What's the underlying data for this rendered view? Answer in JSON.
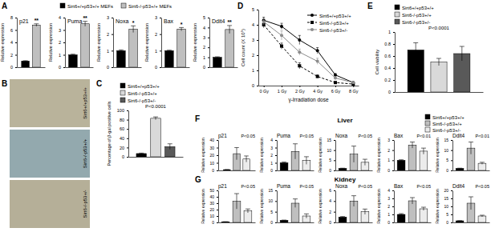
{
  "chart_data": [
    {
      "type": "bar",
      "title": "p21",
      "y_label": "Relative expression",
      "categories": [
        null
      ],
      "series": [
        {
          "name": "Sirt6+/+p53+/+ MEFs",
          "color": "#000000",
          "values": [
            1
          ],
          "errors": [
            0.05
          ]
        },
        {
          "name": "Sirt6-/-p53+/+ MEFs",
          "color": "#bfbfbf",
          "values": [
            6.8
          ],
          "errors": [
            0.2
          ]
        }
      ],
      "legend": "top",
      "annotations": [
        "**"
      ],
      "ylim": [
        0,
        8
      ],
      "yticks": [
        0,
        2,
        4,
        6,
        8
      ]
    },
    {
      "type": "bar",
      "title": "Puma",
      "y_label": "Relative expression",
      "categories": [
        null,
        null
      ],
      "values": [
        1,
        3.5
      ],
      "errors": [
        0.05,
        0.2
      ],
      "colors": [
        "#000000",
        "#bfbfbf"
      ],
      "annotations": [
        "**"
      ],
      "ylim": [
        0,
        4
      ],
      "yticks": [
        0,
        1,
        2,
        3,
        4
      ]
    },
    {
      "type": "bar",
      "title": "Noxa",
      "y_label": "Relative expression",
      "categories": [
        null,
        null
      ],
      "values": [
        1,
        2.3
      ],
      "errors": [
        0.05,
        0.2
      ],
      "colors": [
        "#000000",
        "#bfbfbf"
      ],
      "annotations": [
        "*"
      ],
      "ylim": [
        0,
        3
      ],
      "yticks": [
        0,
        1,
        2,
        3
      ]
    },
    {
      "type": "bar",
      "title": "Bax",
      "y_label": "Relative expression",
      "categories": [
        null,
        null
      ],
      "values": [
        1,
        2.3
      ],
      "errors": [
        0.03,
        0.1
      ],
      "colors": [
        "#000000",
        "#bfbfbf"
      ],
      "annotations": [
        "*"
      ],
      "ylim": [
        0,
        3
      ],
      "yticks": [
        0,
        1,
        2,
        3
      ]
    },
    {
      "type": "bar",
      "title": "Ddit4",
      "y_label": "Relative expression",
      "categories": [
        null,
        null
      ],
      "values": [
        1,
        3.8
      ],
      "errors": [
        0.05,
        0.4
      ],
      "colors": [
        "#000000",
        "#bfbfbf"
      ],
      "annotations": [
        "**"
      ],
      "ylim": [
        0,
        5
      ],
      "yticks": [
        0,
        1,
        2,
        3,
        4,
        5
      ]
    },
    {
      "type": "bar",
      "y_label": "Percentage of β-gal positive cells",
      "categories": [
        null
      ],
      "series": [
        {
          "name": "Sirt6+/+p53+/+",
          "color": "#000000",
          "values": [
            7
          ],
          "errors": [
            1
          ]
        },
        {
          "name": "Sirt6-/-p53+/+",
          "color": "#d9d9d9",
          "values": [
            83
          ],
          "errors": [
            3
          ]
        },
        {
          "name": "Sirt6-/-p53+/-",
          "color": "#595959",
          "values": [
            22
          ],
          "errors": [
            6
          ]
        }
      ],
      "legend": "top",
      "annotations": [
        "P<0.0001"
      ],
      "ylim": [
        0,
        100
      ],
      "yticks": [
        0,
        20,
        40,
        60,
        80,
        100
      ]
    },
    {
      "type": "line",
      "y_label": "Cell count (X 10⁵)",
      "x_label": "γ-Irradiation dose",
      "categories": [
        "0 Gy",
        "1 Gy",
        "2 Gy",
        "4 Gy",
        "6 Gy",
        "8 Gy"
      ],
      "series": [
        {
          "name": "Sirt6+/+p53+/+",
          "color": "#000000",
          "marker": "circle",
          "line_style": "solid",
          "values": [
            4.3,
            3.9,
            3.0,
            2.3,
            0.7,
            0.2
          ],
          "errors": [
            0.2,
            0.2,
            0.3,
            0.2,
            0.1,
            0.05
          ]
        },
        {
          "name": "Sirt6-/-p53+/+",
          "color": "#000000",
          "marker": "square",
          "line_style": "dashed",
          "values": [
            4.0,
            2.6,
            1.3,
            0.6,
            0.2,
            0.1
          ],
          "errors": [
            0.2,
            0.2,
            0.2,
            0.1,
            0.05,
            0.05
          ]
        },
        {
          "name": "Sirt6-/-p53+/-",
          "color": "#8c8c8c",
          "marker": "circle",
          "line_style": "solid",
          "values": [
            4.2,
            3.3,
            2.2,
            1.6,
            0.5,
            0.2
          ],
          "errors": [
            0.2,
            0.3,
            0.2,
            0.2,
            0.1,
            0.05
          ]
        }
      ],
      "legend": "top right",
      "ylim": [
        0,
        5
      ],
      "yticks": [
        0,
        1,
        2,
        3,
        4,
        5
      ]
    },
    {
      "type": "bar",
      "y_label": "Cell viability",
      "categories": [
        null
      ],
      "series": [
        {
          "name": "Sirt6+/+p53+/+",
          "color": "#000000",
          "values": [
            0.7
          ],
          "errors": [
            0.12
          ]
        },
        {
          "name": "Sirt6-/-p53+/+",
          "color": "#d9d9d9",
          "values": [
            0.5
          ],
          "errors": [
            0.06
          ]
        },
        {
          "name": "Sirt6-/-p53+/-",
          "color": "#595959",
          "values": [
            0.64
          ],
          "errors": [
            0.12
          ]
        }
      ],
      "legend": "top",
      "annotations": [
        "P<0.0001"
      ],
      "ylim": [
        0,
        1
      ],
      "yticks": [
        0,
        0.2,
        0.4,
        0.6,
        0.8,
        1
      ]
    },
    {
      "type": "bar",
      "title": "p21",
      "subtitle": "Liver",
      "y_label": "Relative expression",
      "categories": [
        null
      ],
      "series": [
        {
          "name": "Sirt6+/+p53+/+",
          "color": "#000000",
          "values": [
            1
          ],
          "errors": [
            0.1
          ]
        },
        {
          "name": "Sirt6-/-p53+/+",
          "color": "#bfbfbf",
          "values": [
            22
          ],
          "errors": [
            8
          ]
        },
        {
          "name": "Sirt6-/-p53+/-",
          "color": "#ececec",
          "values": [
            15
          ],
          "errors": [
            4
          ]
        }
      ],
      "legend": "top right",
      "annotations": [
        "P<0.05"
      ],
      "ylim": [
        0,
        40
      ],
      "yticks": [
        0,
        10,
        20,
        30,
        40
      ]
    },
    {
      "type": "bar",
      "title": "Puma",
      "y_label": "Relative expression",
      "categories": [
        null,
        null,
        null
      ],
      "values": [
        1,
        2.5,
        1.3
      ],
      "errors": [
        0.1,
        1,
        0.5
      ],
      "colors": [
        "#000000",
        "#bfbfbf",
        "#ececec"
      ],
      "annotations": [
        "P<0.05"
      ],
      "ylim": [
        0,
        4
      ],
      "yticks": [
        0,
        1,
        2,
        3,
        4
      ]
    },
    {
      "type": "bar",
      "title": "Noxa",
      "y_label": "Relative expression",
      "categories": [
        null,
        null,
        null
      ],
      "values": [
        1,
        8,
        4
      ],
      "errors": [
        0.1,
        4,
        1.5
      ],
      "colors": [
        "#000000",
        "#bfbfbf",
        "#ececec"
      ],
      "annotations": [
        "P<0.05"
      ],
      "ylim": [
        0,
        15
      ],
      "yticks": [
        0,
        5,
        10,
        15
      ]
    },
    {
      "type": "bar",
      "title": "Bax",
      "y_label": "Relative expression",
      "categories": [
        null,
        null,
        null
      ],
      "values": [
        1,
        2.5,
        1.9
      ],
      "errors": [
        0.05,
        0.3,
        0.3
      ],
      "colors": [
        "#000000",
        "#bfbfbf",
        "#ececec"
      ],
      "annotations": [
        "P<0.01"
      ],
      "ylim": [
        0,
        3
      ],
      "yticks": [
        0,
        1,
        2,
        3
      ]
    },
    {
      "type": "bar",
      "title": "Ddit4",
      "y_label": "Relative expression",
      "categories": [
        null,
        null,
        null
      ],
      "values": [
        1,
        11,
        3.5
      ],
      "errors": [
        0.1,
        3,
        0.5
      ],
      "colors": [
        "#000000",
        "#bfbfbf",
        "#ececec"
      ],
      "annotations": [
        "P<0.01"
      ],
      "ylim": [
        0,
        15
      ],
      "yticks": [
        0,
        5,
        10,
        15
      ]
    },
    {
      "type": "bar",
      "title": "p21",
      "subtitle": "Kidney",
      "y_label": "Relative expression",
      "categories": [
        null,
        null,
        null
      ],
      "values": [
        1,
        33,
        18
      ],
      "errors": [
        0.1,
        12,
        3
      ],
      "colors": [
        "#000000",
        "#bfbfbf",
        "#ececec"
      ],
      "annotations": [
        "P<0.05"
      ],
      "ylim": [
        0,
        50
      ],
      "yticks": [
        0,
        10,
        20,
        30,
        40,
        50
      ]
    },
    {
      "type": "bar",
      "title": "Puma",
      "y_label": "Relative expression",
      "categories": [
        null,
        null,
        null
      ],
      "values": [
        1,
        9,
        3
      ],
      "errors": [
        0.1,
        2,
        1
      ],
      "colors": [
        "#000000",
        "#bfbfbf",
        "#ececec"
      ],
      "annotations": [
        "P<0.05"
      ],
      "ylim": [
        0,
        15
      ],
      "yticks": [
        0,
        5,
        10,
        15
      ]
    },
    {
      "type": "bar",
      "title": "Noxa",
      "y_label": "Relative expression",
      "categories": [
        null,
        null,
        null
      ],
      "values": [
        1,
        4,
        2
      ],
      "errors": [
        0.1,
        1,
        0.5
      ],
      "colors": [
        "#000000",
        "#bfbfbf",
        "#ececec"
      ],
      "annotations": [
        "P<0.05"
      ],
      "ylim": [
        0,
        6
      ],
      "yticks": [
        0,
        2,
        4,
        6
      ]
    },
    {
      "type": "bar",
      "title": "Bax",
      "y_label": "Relative expression",
      "categories": [
        null,
        null,
        null
      ],
      "values": [
        1,
        2.7,
        1.7
      ],
      "errors": [
        0.1,
        0.4,
        0.2
      ],
      "colors": [
        "#000000",
        "#bfbfbf",
        "#ececec"
      ],
      "annotations": [
        "P<0.05"
      ],
      "ylim": [
        0,
        4
      ],
      "yticks": [
        0,
        1,
        2,
        3,
        4
      ]
    },
    {
      "type": "bar",
      "title": "Ddit4",
      "y_label": "Relative expression",
      "categories": [
        null,
        null,
        null
      ],
      "values": [
        1,
        12,
        4
      ],
      "errors": [
        0.1,
        4,
        0.5
      ],
      "colors": [
        "#000000",
        "#bfbfbf",
        "#ececec"
      ],
      "annotations": [
        "P<0.05"
      ],
      "ylim": [
        0,
        20
      ],
      "yticks": [
        0,
        5,
        10,
        15,
        20
      ]
    }
  ],
  "panel_labels": [
    "A",
    "B",
    "C",
    "D",
    "E",
    "F",
    "G"
  ],
  "image_panel": {
    "captions": [
      "Sirt6+/+p53+/+",
      "Sirt6-/-p53+/+",
      "Sirt6-/-p53+/-"
    ]
  }
}
